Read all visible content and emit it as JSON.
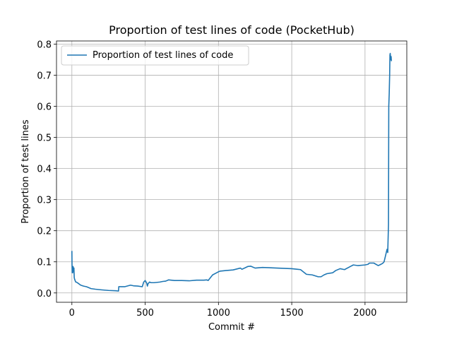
{
  "chart_data": {
    "type": "line",
    "title": "Proportion of test lines of code (PocketHub)",
    "xlabel": "Commit #",
    "ylabel": "Proportion of test lines",
    "xlim": [
      -105,
      2285
    ],
    "ylim": [
      -0.03,
      0.81
    ],
    "grid": true,
    "legend_position": "top-left",
    "x_ticks": [
      0,
      500,
      1000,
      1500,
      2000
    ],
    "x_tick_labels": [
      "0",
      "500",
      "1000",
      "1500",
      "2000"
    ],
    "y_ticks": [
      0.0,
      0.1,
      0.2,
      0.3,
      0.4,
      0.5,
      0.6,
      0.7,
      0.8
    ],
    "y_tick_labels": [
      "0.0",
      "0.1",
      "0.2",
      "0.3",
      "0.4",
      "0.5",
      "0.6",
      "0.7",
      "0.8"
    ],
    "colors": {
      "series": "#1f77b4",
      "grid": "#b0b0b0"
    },
    "series": [
      {
        "name": "Proportion of test lines of code",
        "x": [
          0,
          1,
          2,
          4,
          6,
          8,
          10,
          12,
          14,
          16,
          18,
          22,
          26,
          30,
          40,
          60,
          80,
          100,
          130,
          160,
          200,
          250,
          300,
          318,
          320,
          330,
          360,
          400,
          420,
          450,
          480,
          490,
          500,
          510,
          515,
          520,
          530,
          540,
          560,
          600,
          620,
          640,
          660,
          700,
          750,
          800,
          850,
          900,
          920,
          930,
          960,
          980,
          1000,
          1010,
          1050,
          1100,
          1150,
          1160,
          1200,
          1220,
          1250,
          1300,
          1400,
          1500,
          1540,
          1560,
          1600,
          1640,
          1680,
          1700,
          1720,
          1740,
          1780,
          1800,
          1830,
          1860,
          1900,
          1920,
          1950,
          2000,
          2020,
          2030,
          2060,
          2090,
          2100,
          2120,
          2130,
          2140,
          2150,
          2155,
          2160,
          2162,
          2165,
          2168,
          2170,
          2172,
          2175,
          2178,
          2180
        ],
        "y": [
          0.135,
          0.09,
          0.065,
          0.08,
          0.065,
          0.085,
          0.08,
          0.07,
          0.08,
          0.05,
          0.045,
          0.04,
          0.035,
          0.035,
          0.032,
          0.025,
          0.022,
          0.02,
          0.014,
          0.012,
          0.01,
          0.008,
          0.007,
          0.006,
          0.02,
          0.02,
          0.02,
          0.025,
          0.023,
          0.022,
          0.02,
          0.035,
          0.04,
          0.032,
          0.022,
          0.03,
          0.035,
          0.033,
          0.033,
          0.035,
          0.037,
          0.038,
          0.042,
          0.04,
          0.04,
          0.039,
          0.041,
          0.041,
          0.042,
          0.04,
          0.058,
          0.063,
          0.068,
          0.07,
          0.072,
          0.074,
          0.08,
          0.076,
          0.085,
          0.086,
          0.08,
          0.082,
          0.08,
          0.078,
          0.076,
          0.075,
          0.06,
          0.058,
          0.052,
          0.052,
          0.058,
          0.062,
          0.065,
          0.072,
          0.078,
          0.075,
          0.085,
          0.09,
          0.088,
          0.09,
          0.092,
          0.096,
          0.096,
          0.088,
          0.09,
          0.095,
          0.1,
          0.12,
          0.14,
          0.13,
          0.22,
          0.6,
          0.64,
          0.7,
          0.765,
          0.77,
          0.75,
          0.76,
          0.745
        ]
      }
    ]
  }
}
